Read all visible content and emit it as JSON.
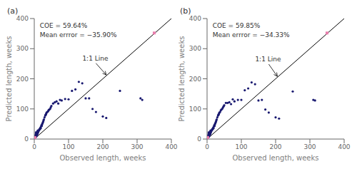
{
  "chart_data": [
    {
      "type": "scatter",
      "title": "(a)",
      "xlabel": "Observed length, weeks",
      "ylabel": "Predicted length, weeks",
      "xlim": [
        0,
        400
      ],
      "ylim": [
        0,
        400
      ],
      "xticks": [
        0,
        100,
        200,
        300,
        400
      ],
      "yticks": [
        0,
        100,
        200,
        300,
        400
      ],
      "annotations": [
        {
          "text": "COE = 59.64%"
        },
        {
          "text": "Mean errror = −35.90%"
        },
        {
          "text": "1:1 Line",
          "x": 130,
          "y": 268,
          "arrow_x": 210,
          "arrow_y": 213
        }
      ],
      "series": [
        {
          "type": "line",
          "color": "#000000",
          "x": [
            0,
            400
          ],
          "y": [
            0,
            400
          ]
        },
        {
          "type": "scatter",
          "marker": "circle",
          "color": "#191970",
          "x": [
            2,
            3,
            3,
            4,
            4,
            4,
            5,
            5,
            5,
            5,
            6,
            6,
            7,
            7,
            8,
            8,
            9,
            9,
            10,
            10,
            11,
            12,
            13,
            14,
            15,
            16,
            17,
            18,
            19,
            20,
            21,
            22,
            23,
            24,
            25,
            26,
            27,
            28,
            30,
            32,
            33,
            34,
            35,
            36,
            38,
            40,
            42,
            44,
            46,
            48,
            50,
            55,
            60,
            65,
            70,
            75,
            80,
            90,
            100,
            110,
            120,
            130,
            140,
            150,
            160,
            170,
            180,
            200,
            210,
            250,
            310,
            315
          ],
          "y": [
            4,
            5,
            8,
            6,
            10,
            14,
            8,
            12,
            18,
            22,
            10,
            16,
            12,
            18,
            15,
            22,
            16,
            22,
            20,
            28,
            22,
            26,
            28,
            30,
            33,
            32,
            35,
            38,
            36,
            42,
            46,
            44,
            50,
            52,
            55,
            58,
            62,
            65,
            72,
            78,
            80,
            82,
            85,
            88,
            90,
            92,
            96,
            98,
            100,
            105,
            110,
            118,
            122,
            125,
            118,
            130,
            128,
            133,
            132,
            160,
            165,
            190,
            185,
            135,
            135,
            100,
            90,
            75,
            70,
            160,
            135,
            130
          ]
        },
        {
          "type": "scatter",
          "marker": "square",
          "color": "#E87EAC",
          "x": [
            2,
            350
          ],
          "y": [
            5,
            352
          ]
        }
      ]
    },
    {
      "type": "scatter",
      "title": "(b)",
      "xlabel": "Observed length, weeks",
      "ylabel": "Predicted length, weeks",
      "xlim": [
        0,
        400
      ],
      "ylim": [
        0,
        400
      ],
      "xticks": [
        0,
        100,
        200,
        300,
        400
      ],
      "yticks": [
        0,
        100,
        200,
        300,
        400
      ],
      "annotations": [
        {
          "text": "COE = 59.85%"
        },
        {
          "text": "Mean errror = −34.33%"
        },
        {
          "text": "1:1 Line",
          "x": 130,
          "y": 265,
          "arrow_x": 205,
          "arrow_y": 208
        }
      ],
      "series": [
        {
          "type": "line",
          "color": "#000000",
          "x": [
            0,
            400
          ],
          "y": [
            0,
            400
          ]
        },
        {
          "type": "scatter",
          "marker": "circle",
          "color": "#191970",
          "x": [
            2,
            3,
            3,
            4,
            4,
            4,
            5,
            5,
            5,
            5,
            6,
            6,
            7,
            7,
            8,
            8,
            9,
            9,
            10,
            10,
            11,
            12,
            13,
            14,
            15,
            16,
            17,
            18,
            19,
            20,
            21,
            22,
            23,
            24,
            25,
            26,
            27,
            28,
            30,
            32,
            33,
            34,
            35,
            36,
            38,
            40,
            42,
            44,
            46,
            48,
            50,
            55,
            60,
            65,
            70,
            75,
            80,
            90,
            100,
            110,
            120,
            130,
            140,
            150,
            160,
            170,
            180,
            200,
            210,
            250,
            310,
            315
          ],
          "y": [
            4,
            5,
            8,
            6,
            10,
            14,
            8,
            12,
            18,
            22,
            10,
            16,
            12,
            18,
            15,
            22,
            16,
            22,
            20,
            28,
            22,
            26,
            28,
            30,
            33,
            32,
            35,
            38,
            36,
            42,
            46,
            44,
            50,
            52,
            55,
            58,
            62,
            65,
            72,
            78,
            80,
            82,
            85,
            88,
            90,
            95,
            98,
            100,
            104,
            108,
            112,
            120,
            120,
            122,
            116,
            132,
            125,
            130,
            130,
            162,
            168,
            188,
            182,
            128,
            130,
            98,
            88,
            72,
            68,
            158,
            130,
            128
          ]
        },
        {
          "type": "scatter",
          "marker": "square",
          "color": "#E87EAC",
          "x": [
            2,
            350
          ],
          "y": [
            5,
            352
          ]
        }
      ]
    }
  ]
}
